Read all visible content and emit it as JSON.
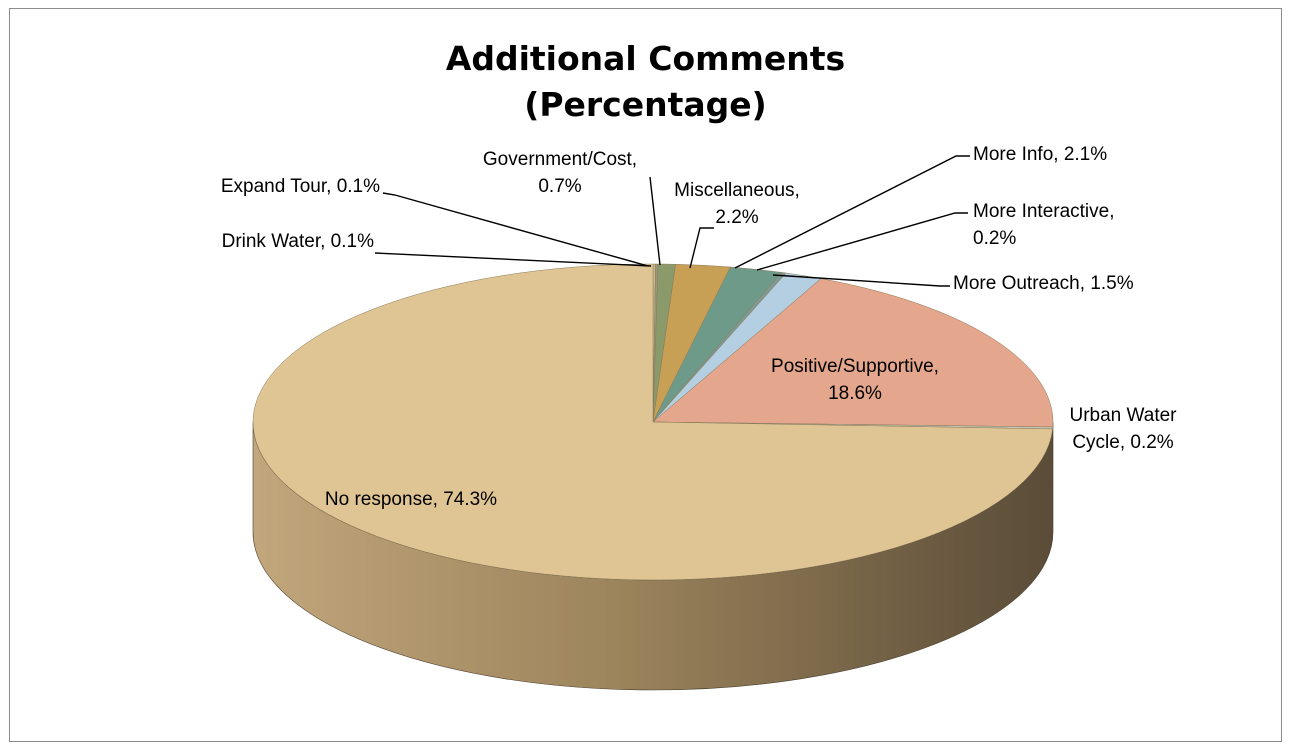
{
  "chart_data": {
    "type": "pie",
    "title_lines": [
      "Additional Comments",
      "(Percentage)"
    ],
    "slices": [
      {
        "label": "Drink Water",
        "value": 0.1,
        "color": "#c9b98a",
        "label_lines": [
          "Drink Water, 0.1%"
        ]
      },
      {
        "label": "Expand Tour",
        "value": 0.1,
        "color": "#9a9a7a",
        "label_lines": [
          "Expand Tour, 0.1%"
        ]
      },
      {
        "label": "Government/Cost",
        "value": 0.7,
        "color": "#8a9a6a",
        "label_lines": [
          "Government/Cost,",
          "0.7%"
        ]
      },
      {
        "label": "Miscellaneous",
        "value": 2.2,
        "color": "#c8a055",
        "label_lines": [
          "Miscellaneous,",
          "2.2%"
        ]
      },
      {
        "label": "More Info",
        "value": 2.1,
        "color": "#6e9a8a",
        "label_lines": [
          "More Info, 2.1%"
        ]
      },
      {
        "label": "More Interactive",
        "value": 0.2,
        "color": "#7f9a92",
        "label_lines": [
          "More Interactive,",
          "0.2%"
        ]
      },
      {
        "label": "More Outreach",
        "value": 1.5,
        "color": "#b4cfe2",
        "label_lines": [
          "More Outreach, 1.5%"
        ]
      },
      {
        "label": "Positive/Supportive",
        "value": 18.6,
        "color": "#e4a68c",
        "label_lines": [
          "Positive/Supportive,",
          "18.6%"
        ]
      },
      {
        "label": "Urban Water Cycle",
        "value": 0.2,
        "color": "#c6c6b6",
        "label_lines": [
          "Urban Water",
          "Cycle, 0.2%"
        ]
      },
      {
        "label": "No response",
        "value": 74.3,
        "color": "#e0c594",
        "label_lines": [
          "No response, 74.3%"
        ]
      }
    ],
    "style": "3d-pie",
    "legend": "none",
    "data_labels": "category, value"
  }
}
